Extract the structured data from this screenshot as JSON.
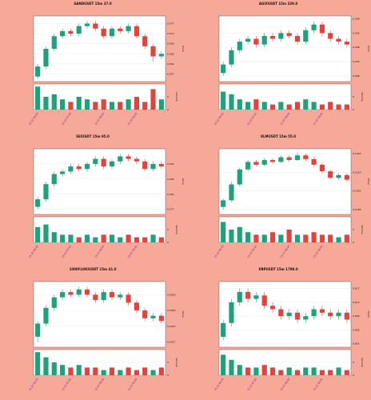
{
  "chart_data": [
    {
      "type": "candlestick",
      "title": "SANDUSDT 15m 37.0",
      "ylabel": "Price",
      "volume_label": "Volume",
      "up_color": "#22a07a",
      "down_color": "#e0443e",
      "categories": [
        "11-22 06:00",
        null,
        null,
        null,
        "11-22 07:00",
        null,
        null,
        null,
        "11-22 08:00",
        null,
        null,
        null,
        "11-22 09:00",
        null,
        null,
        null
      ],
      "open": [
        0.556,
        0.56,
        0.567,
        0.572,
        0.574,
        0.573,
        0.576,
        0.577,
        0.575,
        0.572,
        0.575,
        0.574,
        0.576,
        0.572,
        0.568,
        0.564
      ],
      "high": [
        0.561,
        0.568,
        0.573,
        0.575,
        0.575,
        0.577,
        0.578,
        0.578,
        0.576,
        0.576,
        0.576,
        0.577,
        0.577,
        0.573,
        0.569,
        0.566
      ],
      "low": [
        0.555,
        0.559,
        0.566,
        0.571,
        0.572,
        0.572,
        0.575,
        0.574,
        0.571,
        0.571,
        0.573,
        0.573,
        0.571,
        0.567,
        0.562,
        0.563
      ],
      "close": [
        0.56,
        0.567,
        0.572,
        0.574,
        0.573,
        0.576,
        0.577,
        0.575,
        0.572,
        0.575,
        0.574,
        0.576,
        0.572,
        0.568,
        0.564,
        0.565
      ],
      "volume": [
        9,
        5,
        6,
        4,
        3,
        5,
        4,
        3,
        4,
        3,
        3,
        4,
        5,
        3,
        8,
        4
      ],
      "ylim": [
        0.554,
        0.58
      ],
      "yticks": [
        0.557,
        0.561,
        0.565,
        0.569,
        0.573,
        0.577
      ],
      "volume_ylim": [
        0,
        10
      ],
      "volume_yticks": [
        0,
        5
      ]
    },
    {
      "type": "candlestick",
      "title": "AGIXUSDT 15m 329.0",
      "ylabel": "Price",
      "volume_label": "Volume",
      "up_color": "#22a07a",
      "down_color": "#e0443e",
      "categories": [
        "11-22 06:00",
        null,
        null,
        null,
        "11-22 07:00",
        null,
        null,
        null,
        "11-22 08:00",
        null,
        null,
        null,
        "11-22 09:00",
        null,
        null,
        null
      ],
      "open": [
        0.289,
        0.292,
        0.297,
        0.3,
        0.301,
        0.299,
        0.302,
        0.301,
        0.303,
        0.302,
        0.3,
        0.304,
        0.306,
        0.303,
        0.301,
        0.3
      ],
      "high": [
        0.293,
        0.298,
        0.301,
        0.302,
        0.302,
        0.303,
        0.303,
        0.304,
        0.304,
        0.303,
        0.305,
        0.307,
        0.307,
        0.304,
        0.302,
        0.301
      ],
      "low": [
        0.288,
        0.291,
        0.296,
        0.299,
        0.298,
        0.298,
        0.3,
        0.3,
        0.301,
        0.299,
        0.299,
        0.303,
        0.302,
        0.3,
        0.299,
        0.298
      ],
      "close": [
        0.292,
        0.297,
        0.3,
        0.301,
        0.299,
        0.302,
        0.301,
        0.303,
        0.302,
        0.3,
        0.304,
        0.306,
        0.303,
        0.301,
        0.3,
        0.299
      ],
      "volume": [
        7,
        6,
        4,
        3,
        4,
        3,
        2,
        3,
        2,
        3,
        4,
        3,
        2,
        3,
        2,
        2
      ],
      "ylim": [
        0.286,
        0.309
      ],
      "yticks": [
        0.288,
        0.293,
        0.298,
        0.303,
        0.308
      ],
      "volume_ylim": [
        0,
        10
      ],
      "volume_yticks": [
        0,
        5
      ]
    },
    {
      "type": "candlestick",
      "title": "SEIUSDT 15m 95.0",
      "ylabel": "Price",
      "volume_label": "Volume",
      "up_color": "#22a07a",
      "down_color": "#e0443e",
      "categories": [
        "11-22 06:00",
        null,
        null,
        null,
        "11-22 07:00",
        null,
        null,
        null,
        "11-22 08:00",
        null,
        null,
        null,
        "11-22 09:00",
        null,
        null,
        null
      ],
      "open": [
        0.278,
        0.281,
        0.287,
        0.291,
        0.292,
        0.294,
        0.293,
        0.295,
        0.297,
        0.294,
        0.296,
        0.298,
        0.297,
        0.296,
        0.293,
        0.295
      ],
      "high": [
        0.282,
        0.288,
        0.292,
        0.293,
        0.295,
        0.295,
        0.296,
        0.298,
        0.298,
        0.297,
        0.299,
        0.299,
        0.298,
        0.297,
        0.296,
        0.296
      ],
      "low": [
        0.277,
        0.28,
        0.286,
        0.29,
        0.291,
        0.292,
        0.292,
        0.294,
        0.293,
        0.293,
        0.295,
        0.296,
        0.295,
        0.292,
        0.292,
        0.293
      ],
      "close": [
        0.281,
        0.287,
        0.291,
        0.292,
        0.294,
        0.293,
        0.295,
        0.297,
        0.294,
        0.296,
        0.298,
        0.297,
        0.296,
        0.293,
        0.295,
        0.294
      ],
      "volume": [
        6,
        7,
        4,
        3,
        3,
        2,
        3,
        2,
        3,
        3,
        2,
        3,
        2,
        2,
        3,
        2
      ],
      "ylim": [
        0.275,
        0.301
      ],
      "yticks": [
        0.277,
        0.283,
        0.289,
        0.295
      ],
      "volume_ylim": [
        0,
        10
      ],
      "volume_yticks": [
        0,
        5
      ]
    },
    {
      "type": "candlestick",
      "title": "XLMUSDT 15m 55.0",
      "ylabel": "Price",
      "volume_label": "Volume",
      "up_color": "#22a07a",
      "down_color": "#e0443e",
      "categories": [
        "11-22 06:00",
        null,
        null,
        null,
        "11-22 07:00",
        null,
        null,
        null,
        "11-22 08:00",
        null,
        null,
        null,
        "11-22 09:00",
        null,
        null,
        null
      ],
      "open": [
        0.1188,
        0.1195,
        0.1212,
        0.1228,
        0.1236,
        0.1233,
        0.1238,
        0.1236,
        0.1241,
        0.1238,
        0.1243,
        0.1239,
        0.1233,
        0.1226,
        0.1219,
        0.1222
      ],
      "high": [
        0.1197,
        0.1215,
        0.123,
        0.1238,
        0.1238,
        0.124,
        0.124,
        0.1243,
        0.1243,
        0.1246,
        0.1245,
        0.1241,
        0.1235,
        0.1228,
        0.1224,
        0.1224
      ],
      "low": [
        0.1185,
        0.1193,
        0.121,
        0.1226,
        0.1231,
        0.1231,
        0.1234,
        0.1235,
        0.1236,
        0.1237,
        0.1237,
        0.1231,
        0.1224,
        0.1217,
        0.1217,
        0.1215
      ],
      "close": [
        0.1195,
        0.1212,
        0.1228,
        0.1236,
        0.1233,
        0.1238,
        0.1236,
        0.1241,
        0.1238,
        0.1243,
        0.1239,
        0.1233,
        0.1226,
        0.1219,
        0.1222,
        0.1217
      ],
      "volume": [
        8,
        5,
        6,
        4,
        3,
        3,
        4,
        3,
        5,
        3,
        3,
        4,
        3,
        3,
        2,
        3
      ],
      "ylim": [
        0.118,
        0.125
      ],
      "yticks": [
        0.1185,
        0.1205,
        0.1225,
        0.1245
      ],
      "volume_ylim": [
        0,
        10
      ],
      "volume_yticks": [
        0,
        5
      ]
    },
    {
      "type": "candlestick",
      "title": "1000FLOKIUSDT 15m 41.0",
      "ylabel": "Price",
      "volume_label": "Volume",
      "up_color": "#22a07a",
      "down_color": "#e0443e",
      "categories": [
        "11-22 06:00",
        null,
        null,
        null,
        "11-22 07:00",
        null,
        null,
        null,
        "11-22 08:00",
        null,
        null,
        null,
        "11-22 09:00",
        null,
        null,
        null
      ],
      "open": [
        0.0339,
        0.0344,
        0.035,
        0.0354,
        0.0356,
        0.0355,
        0.0357,
        0.0355,
        0.0353,
        0.0356,
        0.0354,
        0.0355,
        0.0352,
        0.0349,
        0.0346,
        0.0347
      ],
      "high": [
        0.0345,
        0.0351,
        0.0355,
        0.0357,
        0.0357,
        0.0358,
        0.0358,
        0.0356,
        0.0357,
        0.0357,
        0.0356,
        0.0356,
        0.0353,
        0.035,
        0.0348,
        0.0348
      ],
      "low": [
        0.0337,
        0.0343,
        0.0349,
        0.0353,
        0.0354,
        0.0354,
        0.0354,
        0.0352,
        0.0352,
        0.0353,
        0.0353,
        0.0351,
        0.0348,
        0.0345,
        0.0345,
        0.0344
      ],
      "close": [
        0.0344,
        0.035,
        0.0354,
        0.0356,
        0.0355,
        0.0357,
        0.0355,
        0.0353,
        0.0356,
        0.0354,
        0.0355,
        0.0352,
        0.0349,
        0.0346,
        0.0347,
        0.0345
      ],
      "volume": [
        9,
        7,
        5,
        4,
        3,
        4,
        3,
        3,
        2,
        3,
        2,
        3,
        2,
        3,
        2,
        3
      ],
      "ylim": [
        0.0335,
        0.036
      ],
      "yticks": [
        0.0337,
        0.0343,
        0.0349,
        0.0355
      ],
      "volume_ylim": [
        0,
        10
      ],
      "volume_yticks": [
        0,
        5
      ]
    },
    {
      "type": "candlestick",
      "title": "XRPUSDT 15m 1798.0",
      "ylabel": "Price",
      "volume_label": "Volume",
      "up_color": "#22a07a",
      "down_color": "#e0443e",
      "categories": [
        "11-22 06:00",
        null,
        null,
        null,
        "11-22 07:00",
        null,
        null,
        null,
        "11-22 08:00",
        null,
        null,
        null,
        "11-22 09:00",
        null,
        null,
        null
      ],
      "open": [
        0.603,
        0.607,
        0.613,
        0.616,
        0.614,
        0.615,
        0.612,
        0.611,
        0.609,
        0.61,
        0.608,
        0.609,
        0.611,
        0.61,
        0.609,
        0.61
      ],
      "high": [
        0.608,
        0.614,
        0.617,
        0.617,
        0.616,
        0.616,
        0.613,
        0.612,
        0.611,
        0.611,
        0.61,
        0.612,
        0.612,
        0.611,
        0.611,
        0.611
      ],
      "low": [
        0.602,
        0.606,
        0.612,
        0.613,
        0.613,
        0.611,
        0.61,
        0.608,
        0.608,
        0.607,
        0.607,
        0.608,
        0.609,
        0.608,
        0.608,
        0.607
      ],
      "close": [
        0.607,
        0.613,
        0.616,
        0.614,
        0.615,
        0.612,
        0.611,
        0.609,
        0.61,
        0.608,
        0.609,
        0.611,
        0.61,
        0.609,
        0.61,
        0.608
      ],
      "volume": [
        8,
        6,
        4,
        3,
        3,
        4,
        3,
        2,
        3,
        2,
        3,
        3,
        2,
        2,
        3,
        2
      ],
      "ylim": [
        0.6,
        0.619
      ],
      "yticks": [
        0.601,
        0.605,
        0.609,
        0.613,
        0.617
      ],
      "volume_ylim": [
        0,
        10
      ],
      "volume_yticks": [
        0,
        5
      ]
    }
  ]
}
